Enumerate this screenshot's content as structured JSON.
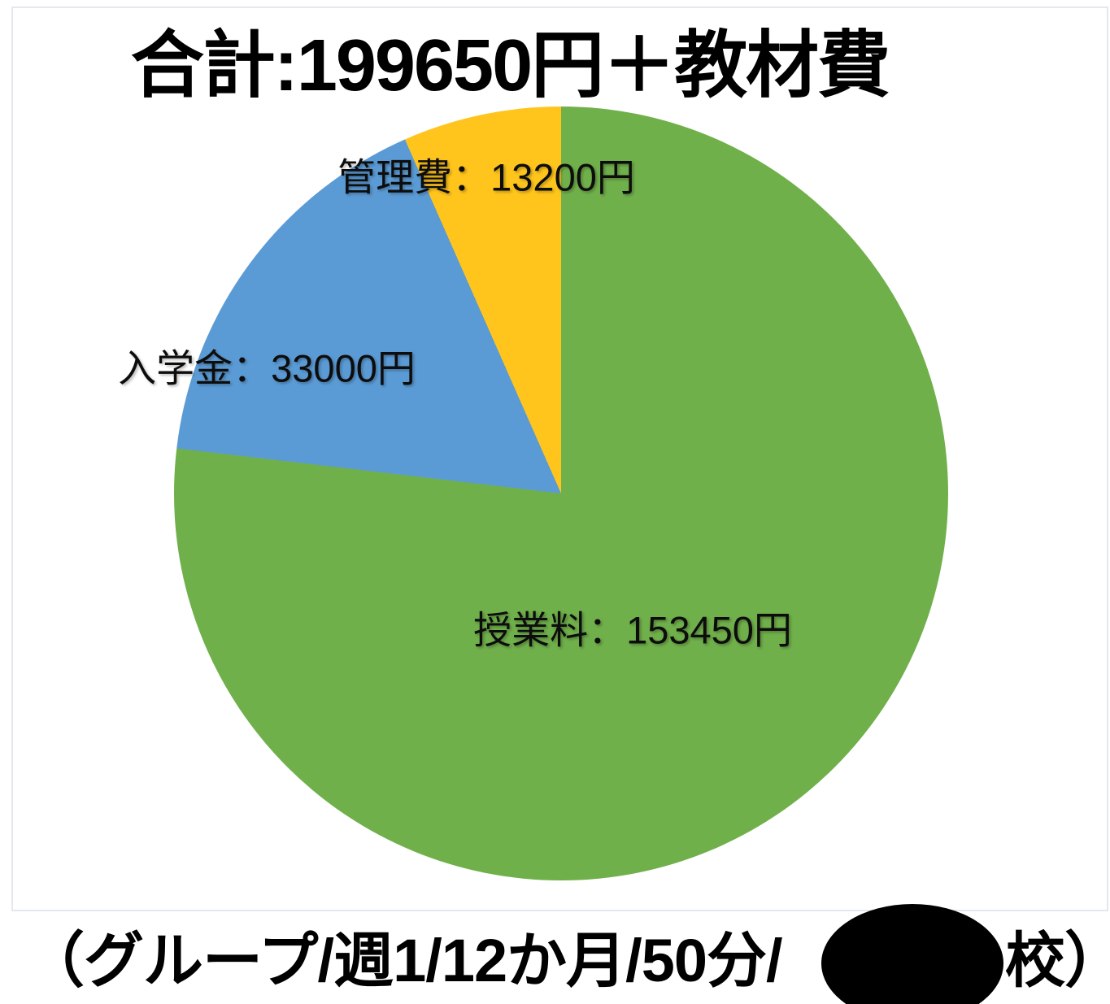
{
  "chart_data": {
    "type": "pie",
    "title": "合計:199650円＋教材費",
    "categories": [
      "授業料",
      "入学金",
      "管理費"
    ],
    "values": [
      153450,
      33000,
      13200
    ],
    "total": 199650,
    "unit": "円",
    "slices": [
      {
        "name": "授業料",
        "value": 153450,
        "label": "授業料：153450円",
        "color": "#70B04B"
      },
      {
        "name": "入学金",
        "value": 33000,
        "label": "入学金：33000円",
        "color": "#5B9BD5"
      },
      {
        "name": "管理費",
        "value": 13200,
        "label": "管理費：13200円",
        "color": "#FFC51C"
      }
    ],
    "start_angle_deg": 0,
    "direction": "clockwise",
    "legend": "none",
    "labels_position": "on-slice"
  },
  "caption": {
    "prefix": "（グループ/週1/12か月/50分/",
    "suffix": "校）",
    "redaction": "black-ellipse-over-school-name"
  }
}
